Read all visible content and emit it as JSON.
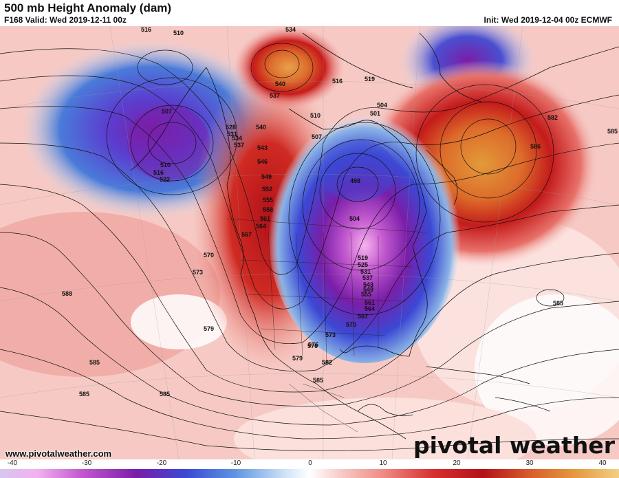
{
  "header": {
    "title": "500 mb Height Anomaly (dam)",
    "valid": "F168 Valid: Wed 2019-12-11 00z",
    "init": "Init: Wed 2019-12-04 00z ECMWF"
  },
  "footer": {
    "url": "www.pivotalweather.com",
    "brand": "pivotal weather"
  },
  "colorbar": {
    "labels": [
      "-40",
      "-30",
      "-20",
      "-10",
      "0",
      "10",
      "20",
      "30",
      "40"
    ],
    "colors": {
      "strong_negative": "#f5a7f5",
      "negative_purple": "#8a1fa8",
      "negative_blue": "#3a4fd6",
      "neutral": "#ffffff",
      "positive_pink": "#f5c4c0",
      "positive_red": "#c81a1a",
      "strong_positive": "#e8952f"
    }
  },
  "contour_labels": [
    "516",
    "510",
    "534",
    "540",
    "537",
    "519",
    "516",
    "507",
    "510",
    "516",
    "522",
    "528",
    "531",
    "534",
    "537",
    "540",
    "543",
    "546",
    "549",
    "552",
    "555",
    "558",
    "561",
    "564",
    "567",
    "570",
    "573",
    "576",
    "579",
    "582",
    "585",
    "588",
    "498",
    "504",
    "501",
    "504",
    "507",
    "510",
    "519",
    "525",
    "531",
    "537",
    "543",
    "549",
    "555",
    "561",
    "564",
    "567",
    "570",
    "573",
    "576",
    "579",
    "582",
    "585",
    "585",
    "585",
    "585",
    "586",
    "582",
    "585",
    "585"
  ]
}
